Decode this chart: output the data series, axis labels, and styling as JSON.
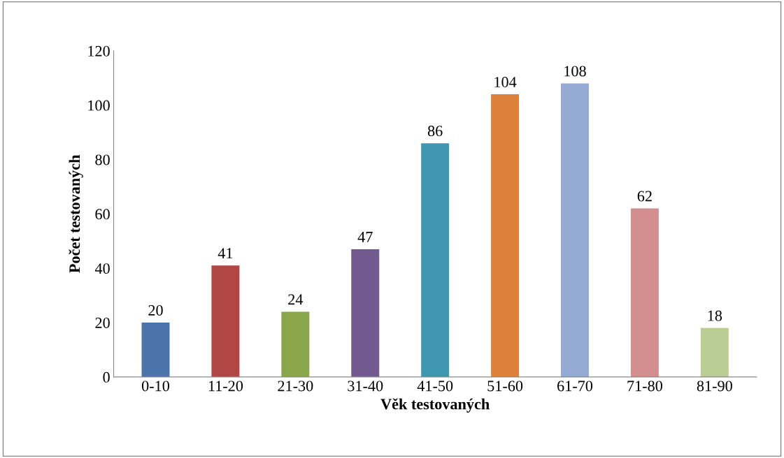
{
  "chart_data": {
    "type": "bar",
    "xlabel": "Věk testovaných",
    "ylabel": "Počet testovaných",
    "categories": [
      "0-10",
      "11-20",
      "21-30",
      "31-40",
      "41-50",
      "51-60",
      "61-70",
      "71-80",
      "81-90"
    ],
    "values": [
      20,
      41,
      24,
      47,
      86,
      104,
      108,
      62,
      18
    ],
    "colors": [
      "#4a74aa",
      "#b04744",
      "#8aa64a",
      "#725a8e",
      "#3f98b0",
      "#dd8039",
      "#95aad3",
      "#d38f8f",
      "#b9cd94"
    ],
    "ylim": [
      0,
      120
    ],
    "yticks": [
      0,
      20,
      40,
      60,
      80,
      100,
      120
    ],
    "grid": false,
    "data_labels": true,
    "legend": false
  }
}
